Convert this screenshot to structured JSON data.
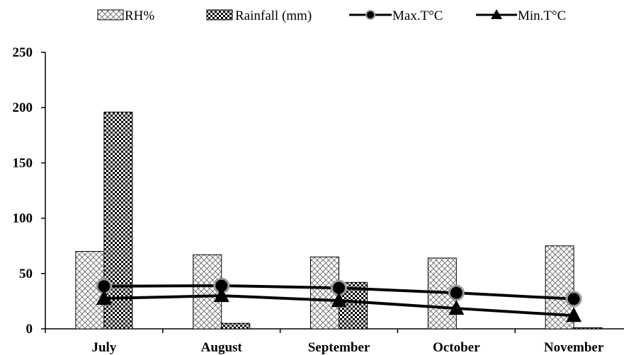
{
  "chart_data": {
    "type": "bar",
    "categories": [
      "July",
      "August",
      "September",
      "October",
      "November"
    ],
    "series": [
      {
        "name": "RH%",
        "kind": "bar",
        "pattern": "crosshatch",
        "values": [
          70,
          67,
          65,
          64,
          75
        ]
      },
      {
        "name": "Rainfall (mm)",
        "kind": "bar",
        "pattern": "checker",
        "values": [
          196,
          5,
          42,
          0,
          1
        ]
      },
      {
        "name": "Max.T°C",
        "kind": "line",
        "marker": "circle",
        "values": [
          38.5,
          39,
          37,
          32.5,
          27
        ]
      },
      {
        "name": "Min.T°C",
        "kind": "line",
        "marker": "triangle",
        "values": [
          27.5,
          30,
          25.5,
          18.5,
          12
        ]
      }
    ],
    "yticks": [
      "0",
      "50",
      "100",
      "150",
      "200",
      "250"
    ],
    "ylim": [
      0,
      250
    ],
    "xlabel": "",
    "ylabel": "",
    "title": "",
    "grid": false,
    "legend_position": "top"
  }
}
